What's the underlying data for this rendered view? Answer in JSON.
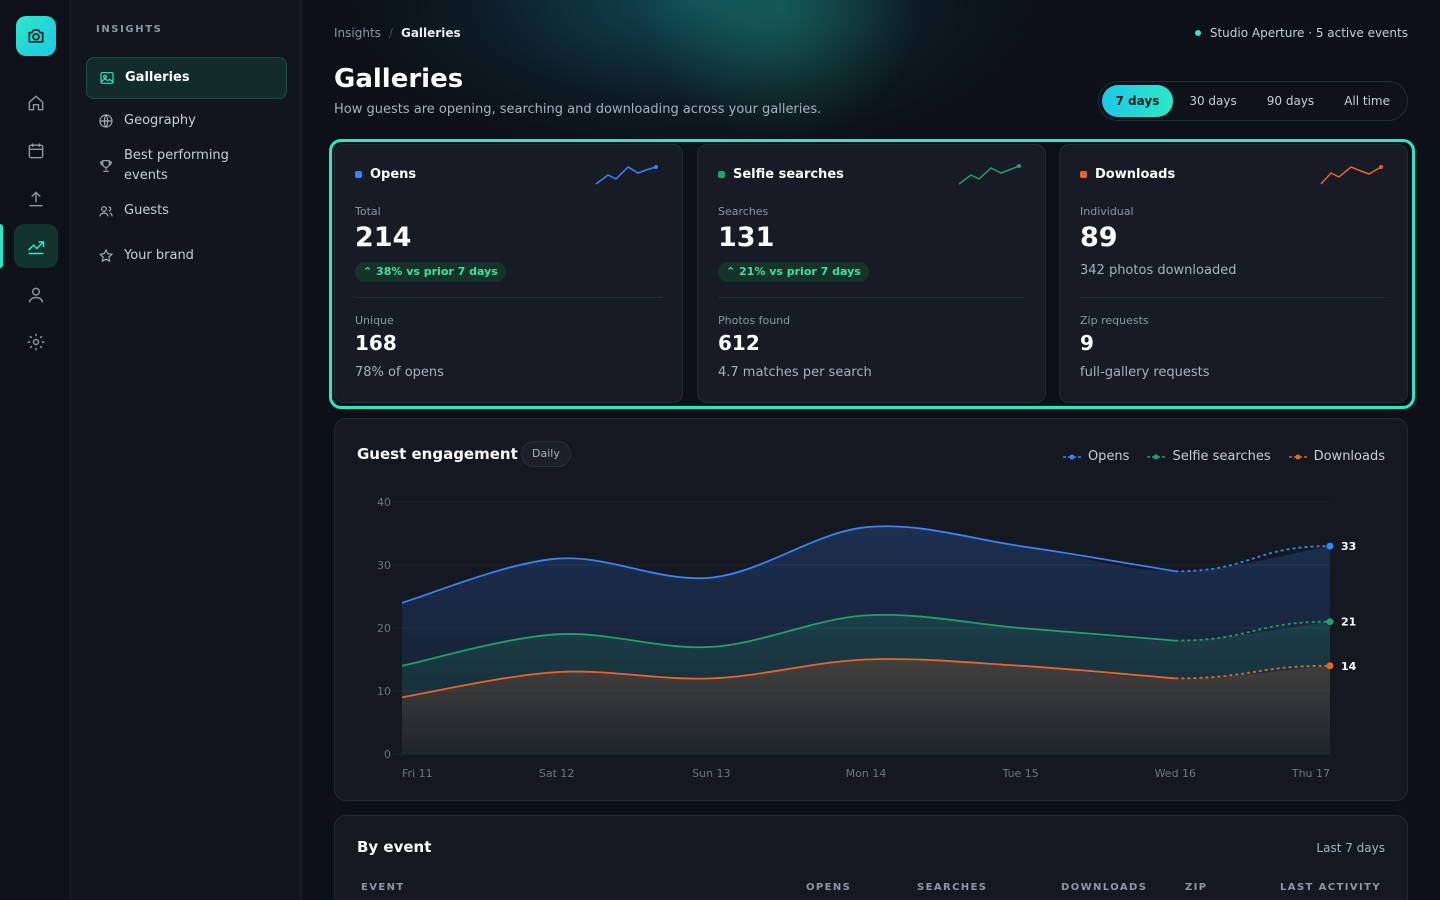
{
  "colors": {
    "accent": "#2ee6c6",
    "opens": "#3b82f6",
    "selfie": "#22a06b",
    "downloads": "#e8642c"
  },
  "rail": {
    "icons": [
      "camera-icon",
      "home-icon",
      "calendar-icon",
      "upload-icon",
      "chart-icon",
      "user-icon",
      "gear-icon"
    ],
    "active": "chart-icon"
  },
  "sidebar": {
    "heading": "INSIGHTS",
    "items": [
      {
        "label": "Galleries",
        "icon": "image-icon",
        "active": true
      },
      {
        "label": "Geography",
        "icon": "globe-icon"
      },
      {
        "label": "Best performing events",
        "icon": "trophy-icon"
      },
      {
        "label": "Guests",
        "icon": "users-icon"
      },
      {
        "label": "Your brand",
        "icon": "star-icon"
      }
    ]
  },
  "header": {
    "breadcrumb": [
      "Insights",
      "/",
      "Galleries"
    ],
    "studio": "Studio Aperture · 5 active events",
    "title": "Galleries",
    "subtitle": "How guests are opening, searching and downloading across your galleries.",
    "ranges": [
      "7 days",
      "30 days",
      "90 days",
      "All time"
    ],
    "active_range": "7 days"
  },
  "cards": [
    {
      "title": "Opens",
      "primary_label": "Total",
      "primary_value": "214",
      "badge": "38% vs prior 7 days",
      "secondary_label": "Unique",
      "secondary_value": "168",
      "secondary_note": "78% of opens"
    },
    {
      "title": "Selfie searches",
      "primary_label": "Searches",
      "primary_value": "131",
      "badge": "21% vs prior 7 days",
      "secondary_label": "Photos found",
      "secondary_value": "612",
      "secondary_note": "4.7 matches per search"
    },
    {
      "title": "Downloads",
      "primary_label": "Individual",
      "primary_value": "89",
      "primary_note": "342 photos downloaded",
      "secondary_label": "Zip requests",
      "secondary_value": "9",
      "secondary_note": "full-gallery requests"
    }
  ],
  "engagement": {
    "title": "Guest engagement",
    "granularity": "Daily",
    "legend": [
      "Opens",
      "Selfie searches",
      "Downloads"
    ]
  },
  "chart_data": {
    "type": "area",
    "title": "Guest engagement",
    "categories": [
      "Fri 11",
      "Sat 12",
      "Sun 13",
      "Mon 14",
      "Tue 15",
      "Wed 16",
      "Thu 17"
    ],
    "y_ticks": [
      0,
      10,
      20,
      30,
      40
    ],
    "ylim": [
      0,
      40
    ],
    "grid": true,
    "legend_position": "top-right",
    "projected_last_segment": true,
    "series": [
      {
        "name": "Opens",
        "values": [
          24,
          31,
          28,
          36,
          33,
          29,
          33
        ],
        "end_label": "33"
      },
      {
        "name": "Selfie searches",
        "values": [
          14,
          19,
          17,
          22,
          20,
          18,
          21
        ],
        "end_label": "21"
      },
      {
        "name": "Downloads",
        "values": [
          9,
          13,
          12,
          15,
          14,
          12,
          14
        ],
        "end_label": "14"
      }
    ]
  },
  "by_event": {
    "title": "By event",
    "period": "Last 7 days",
    "columns": [
      "EVENT",
      "OPENS",
      "SEARCHES",
      "DOWNLOADS",
      "ZIP",
      "LAST ACTIVITY"
    ]
  }
}
